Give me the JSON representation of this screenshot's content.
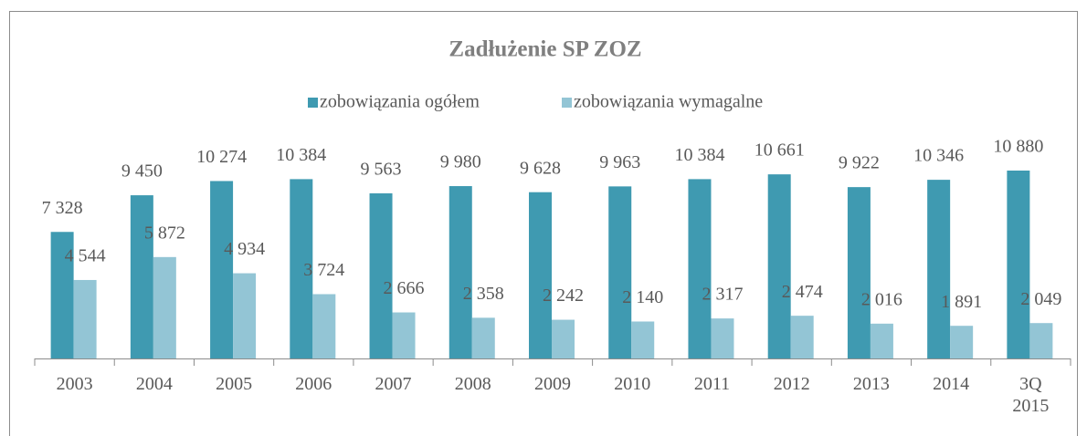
{
  "chart_data": {
    "type": "bar",
    "title": "Zadłużenie SP ZOZ",
    "categories": [
      "2003",
      "2004",
      "2005",
      "2006",
      "2007",
      "2008",
      "2009",
      "2010",
      "2011",
      "2012",
      "2013",
      "2014",
      "3Q 2015"
    ],
    "series": [
      {
        "name": "zobowiązania ogółem",
        "color": "#3f9ab1",
        "values": [
          7328,
          9450,
          10274,
          10384,
          9563,
          9980,
          9628,
          9963,
          10384,
          10661,
          9922,
          10346,
          10880
        ],
        "value_labels": [
          "7 328",
          "9 450",
          "10 274",
          "10 384",
          "9 563",
          "9 980",
          "9 628",
          "9 963",
          "10 384",
          "10 661",
          "9 922",
          "10 346",
          "10 880"
        ]
      },
      {
        "name": "zobowiązania wymagalne",
        "color": "#93c5d5",
        "values": [
          4544,
          5872,
          4934,
          3724,
          2666,
          2358,
          2242,
          2140,
          2317,
          2474,
          2016,
          1891,
          2049
        ],
        "value_labels": [
          "4 544",
          "5 872",
          "4 934",
          "3 724",
          "2 666",
          "2 358",
          "2 242",
          "2 140",
          "2 317",
          "2 474",
          "2 016",
          "1 891",
          "2 049"
        ]
      }
    ],
    "legend": "top"
  }
}
